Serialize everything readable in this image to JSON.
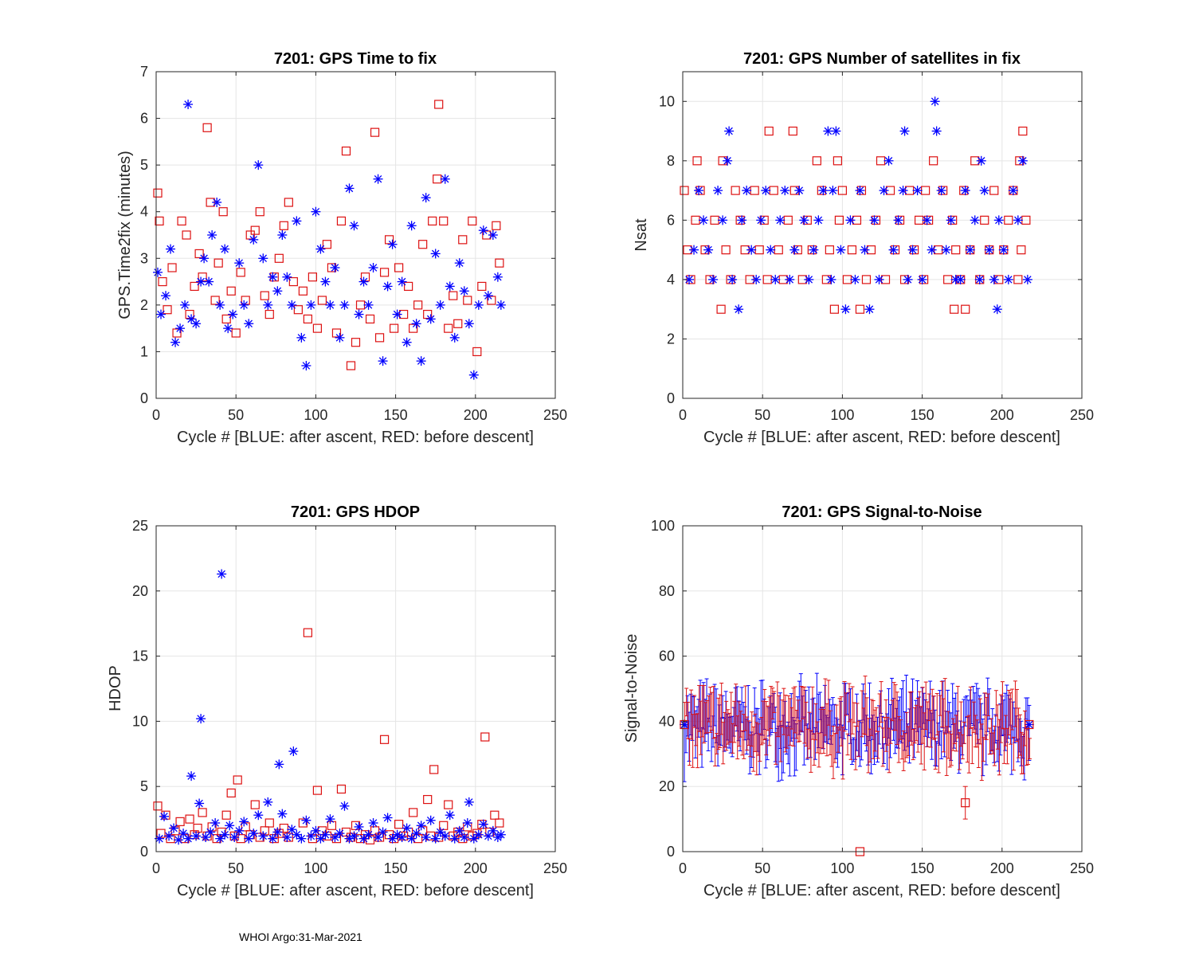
{
  "figure": {
    "footer": "WHOI Argo:31-Mar-2021",
    "colors": {
      "blue": "#0000ff",
      "red": "#dd1111",
      "grid": "#e5e5e5",
      "axis": "#262626"
    }
  },
  "chart_data": [
    {
      "type": "scatter",
      "title": "7201: GPS Time to fix",
      "xlabel": "Cycle #  [BLUE: after ascent, RED: before descent]",
      "ylabel": "GPS.Time2fix (minutes)",
      "xlim": [
        0,
        250
      ],
      "ylim": [
        0,
        7
      ],
      "xticks": [
        0,
        50,
        100,
        150,
        200,
        250
      ],
      "yticks": [
        0,
        1,
        2,
        3,
        4,
        5,
        6,
        7
      ],
      "grid": true,
      "series": [
        {
          "name": "after ascent",
          "marker": "asterisk",
          "color": "blue",
          "x": [
            1,
            3,
            6,
            9,
            12,
            15,
            18,
            20,
            22,
            25,
            28,
            30,
            33,
            35,
            38,
            40,
            43,
            45,
            48,
            52,
            55,
            58,
            61,
            64,
            67,
            70,
            73,
            76,
            79,
            82,
            85,
            88,
            91,
            94,
            97,
            100,
            103,
            106,
            109,
            112,
            115,
            118,
            121,
            124,
            127,
            130,
            133,
            136,
            139,
            142,
            145,
            148,
            151,
            154,
            157,
            160,
            163,
            166,
            169,
            172,
            175,
            178,
            181,
            184,
            187,
            190,
            193,
            196,
            199,
            202,
            205,
            208,
            211,
            214,
            216
          ],
          "y": [
            2.7,
            1.8,
            2.2,
            3.2,
            1.2,
            1.5,
            2.0,
            6.3,
            1.7,
            1.6,
            2.5,
            3.0,
            2.5,
            3.5,
            4.2,
            2.0,
            3.2,
            1.5,
            1.8,
            2.9,
            2.0,
            1.6,
            3.4,
            5.0,
            3.0,
            2.0,
            2.6,
            2.3,
            3.5,
            2.6,
            2.0,
            3.8,
            1.3,
            0.7,
            2.0,
            4.0,
            3.2,
            2.5,
            2.0,
            2.8,
            1.3,
            2.0,
            4.5,
            3.7,
            1.8,
            2.5,
            2.0,
            2.8,
            4.7,
            0.8,
            2.4,
            3.3,
            1.8,
            2.5,
            1.2,
            3.7,
            1.6,
            0.8,
            4.3,
            1.7,
            3.1,
            2.0,
            4.7,
            2.4,
            1.3,
            2.9,
            2.3,
            1.6,
            0.5,
            2.0,
            3.6,
            2.2,
            3.5,
            2.6,
            2.0
          ]
        },
        {
          "name": "before descent",
          "marker": "square",
          "color": "red",
          "x": [
            1,
            2,
            4,
            7,
            10,
            13,
            16,
            19,
            21,
            24,
            27,
            29,
            32,
            34,
            37,
            39,
            42,
            44,
            47,
            50,
            53,
            56,
            59,
            62,
            65,
            68,
            71,
            74,
            77,
            80,
            83,
            86,
            89,
            92,
            95,
            98,
            101,
            104,
            107,
            110,
            113,
            116,
            119,
            122,
            125,
            128,
            131,
            134,
            137,
            140,
            143,
            146,
            149,
            152,
            155,
            158,
            161,
            164,
            167,
            170,
            173,
            176,
            177,
            180,
            183,
            186,
            189,
            192,
            195,
            198,
            201,
            204,
            207,
            210,
            213,
            215
          ],
          "y": [
            4.4,
            3.8,
            2.5,
            1.9,
            2.8,
            1.4,
            3.8,
            3.5,
            1.8,
            2.4,
            3.1,
            2.6,
            5.8,
            4.2,
            2.1,
            2.9,
            4.0,
            1.7,
            2.3,
            1.4,
            2.7,
            2.1,
            3.5,
            3.6,
            4.0,
            2.2,
            1.8,
            2.6,
            3.0,
            3.7,
            4.2,
            2.5,
            1.9,
            2.3,
            1.7,
            2.6,
            1.5,
            2.1,
            3.3,
            2.8,
            1.4,
            3.8,
            5.3,
            0.7,
            1.2,
            2.0,
            2.6,
            1.7,
            5.7,
            1.3,
            2.7,
            3.4,
            1.5,
            2.8,
            1.8,
            2.4,
            1.5,
            2.0,
            3.3,
            1.8,
            3.8,
            4.7,
            6.3,
            3.8,
            1.5,
            2.2,
            1.6,
            3.4,
            2.1,
            3.8,
            1.0,
            2.4,
            3.5,
            2.1,
            3.7,
            2.9
          ]
        }
      ]
    },
    {
      "type": "scatter",
      "title": "7201: GPS Number of satellites in fix",
      "xlabel": "Cycle #  [BLUE: after ascent, RED: before descent]",
      "ylabel": "Nsat",
      "xlim": [
        0,
        250
      ],
      "ylim": [
        0,
        11
      ],
      "xticks": [
        0,
        50,
        100,
        150,
        200,
        250
      ],
      "yticks": [
        0,
        2,
        4,
        6,
        8,
        10
      ],
      "grid": true,
      "series": [
        {
          "name": "after ascent",
          "marker": "asterisk",
          "color": "blue",
          "x": [
            4,
            7,
            10,
            13,
            16,
            19,
            22,
            25,
            28,
            29,
            31,
            35,
            37,
            40,
            43,
            46,
            49,
            52,
            55,
            58,
            61,
            64,
            67,
            70,
            73,
            76,
            79,
            82,
            85,
            88,
            91,
            93,
            94,
            96,
            99,
            102,
            105,
            108,
            111,
            114,
            117,
            120,
            123,
            126,
            129,
            132,
            135,
            138,
            139,
            141,
            144,
            147,
            150,
            153,
            156,
            158,
            159,
            162,
            165,
            168,
            171,
            174,
            177,
            180,
            183,
            186,
            187,
            189,
            192,
            195,
            197,
            198,
            201,
            204,
            207,
            210,
            213,
            216
          ],
          "y": [
            4,
            5,
            7,
            6,
            5,
            4,
            7,
            6,
            8,
            9,
            4,
            3,
            6,
            7,
            5,
            4,
            6,
            7,
            5,
            4,
            6,
            7,
            4,
            5,
            7,
            6,
            4,
            5,
            6,
            7,
            9,
            4,
            7,
            9,
            5,
            3,
            6,
            4,
            7,
            5,
            3,
            6,
            4,
            7,
            8,
            5,
            6,
            7,
            9,
            4,
            5,
            7,
            4,
            6,
            5,
            10,
            9,
            7,
            5,
            6,
            4,
            4,
            7,
            5,
            6,
            4,
            8,
            7,
            5,
            4,
            3,
            6,
            5,
            4,
            7,
            6,
            8,
            4
          ]
        },
        {
          "name": "before descent",
          "marker": "square",
          "color": "red",
          "x": [
            1,
            3,
            5,
            8,
            9,
            11,
            14,
            17,
            20,
            24,
            25,
            27,
            30,
            33,
            36,
            39,
            42,
            45,
            48,
            51,
            53,
            54,
            57,
            60,
            63,
            66,
            69,
            70,
            72,
            75,
            78,
            81,
            84,
            87,
            90,
            92,
            95,
            97,
            98,
            100,
            103,
            106,
            109,
            111,
            112,
            115,
            118,
            121,
            124,
            127,
            130,
            133,
            136,
            139,
            142,
            145,
            148,
            151,
            152,
            154,
            157,
            160,
            163,
            166,
            169,
            170,
            171,
            174,
            176,
            177,
            180,
            183,
            186,
            189,
            192,
            195,
            198,
            201,
            204,
            207,
            210,
            211,
            212,
            213,
            215
          ],
          "y": [
            7,
            5,
            4,
            6,
            8,
            7,
            5,
            4,
            6,
            3,
            8,
            5,
            4,
            7,
            6,
            5,
            4,
            7,
            5,
            6,
            4,
            9,
            7,
            5,
            4,
            6,
            9,
            7,
            5,
            4,
            6,
            5,
            8,
            7,
            4,
            5,
            3,
            8,
            6,
            7,
            4,
            5,
            6,
            3,
            7,
            4,
            5,
            6,
            8,
            4,
            7,
            5,
            6,
            4,
            7,
            5,
            6,
            4,
            7,
            6,
            8,
            5,
            7,
            4,
            6,
            3,
            5,
            4,
            7,
            3,
            5,
            8,
            4,
            6,
            5,
            7,
            4,
            5,
            6,
            7,
            4,
            8,
            5,
            9,
            6
          ]
        }
      ]
    },
    {
      "type": "scatter",
      "title": "7201: GPS HDOP",
      "xlabel": "Cycle #  [BLUE: after ascent, RED: before descent]",
      "ylabel": "HDOP",
      "xlim": [
        0,
        250
      ],
      "ylim": [
        0,
        25
      ],
      "xticks": [
        0,
        50,
        100,
        150,
        200,
        250
      ],
      "yticks": [
        0,
        5,
        10,
        15,
        20,
        25
      ],
      "grid": true,
      "series": [
        {
          "name": "after ascent",
          "marker": "asterisk",
          "color": "blue",
          "x": [
            2,
            5,
            8,
            11,
            14,
            17,
            20,
            22,
            25,
            27,
            28,
            31,
            34,
            37,
            40,
            41,
            43,
            46,
            49,
            52,
            55,
            58,
            61,
            64,
            67,
            70,
            73,
            76,
            77,
            79,
            82,
            85,
            86,
            88,
            91,
            94,
            97,
            100,
            103,
            106,
            109,
            112,
            115,
            118,
            121,
            124,
            127,
            130,
            133,
            136,
            139,
            142,
            145,
            148,
            151,
            154,
            157,
            160,
            163,
            166,
            169,
            172,
            175,
            178,
            181,
            184,
            187,
            190,
            193,
            195,
            196,
            199,
            202,
            205,
            208,
            211,
            214,
            216
          ],
          "y": [
            1.0,
            2.7,
            1.2,
            1.8,
            0.9,
            1.4,
            1.0,
            5.8,
            1.2,
            3.7,
            10.2,
            1.1,
            1.5,
            2.2,
            1.0,
            21.3,
            1.3,
            2.0,
            1.1,
            1.6,
            2.3,
            1.0,
            1.4,
            2.8,
            1.2,
            3.8,
            1.0,
            1.5,
            6.7,
            2.9,
            1.1,
            1.7,
            7.7,
            1.3,
            1.0,
            2.4,
            1.2,
            1.6,
            1.0,
            1.3,
            2.5,
            1.1,
            1.4,
            3.5,
            1.0,
            1.2,
            1.9,
            1.0,
            1.3,
            2.2,
            1.1,
            1.5,
            2.6,
            1.0,
            1.3,
            1.1,
            1.8,
            1.0,
            1.4,
            2.0,
            1.1,
            2.4,
            1.0,
            1.5,
            1.2,
            2.8,
            1.0,
            1.6,
            1.1,
            2.2,
            3.8,
            1.0,
            1.3,
            2.1,
            1.2,
            1.6,
            1.1,
            1.3
          ]
        },
        {
          "name": "before descent",
          "marker": "square",
          "color": "red",
          "x": [
            1,
            3,
            6,
            9,
            12,
            15,
            18,
            21,
            24,
            26,
            29,
            32,
            35,
            38,
            41,
            44,
            47,
            49,
            51,
            53,
            56,
            59,
            62,
            65,
            68,
            71,
            74,
            77,
            80,
            83,
            92,
            95,
            98,
            101,
            104,
            107,
            110,
            113,
            116,
            119,
            122,
            125,
            128,
            131,
            134,
            137,
            140,
            143,
            146,
            149,
            152,
            155,
            158,
            161,
            164,
            167,
            170,
            172,
            174,
            177,
            180,
            183,
            186,
            189,
            192,
            195,
            198,
            201,
            204,
            206,
            209,
            212,
            215
          ],
          "y": [
            3.5,
            1.4,
            2.8,
            1.0,
            1.6,
            2.3,
            1.0,
            2.5,
            1.3,
            1.8,
            3.0,
            1.2,
            1.9,
            1.0,
            1.5,
            2.8,
            4.5,
            1.2,
            5.5,
            1.0,
            1.9,
            1.3,
            3.6,
            1.1,
            1.6,
            2.2,
            1.0,
            1.4,
            1.8,
            1.1,
            2.2,
            16.8,
            1.0,
            4.7,
            1.6,
            1.2,
            2.0,
            1.0,
            4.8,
            1.5,
            1.1,
            2.0,
            1.0,
            1.3,
            0.9,
            1.6,
            1.1,
            8.6,
            1.3,
            1.0,
            2.1,
            1.2,
            1.5,
            3.0,
            1.0,
            1.6,
            4.0,
            1.2,
            6.3,
            1.1,
            2.0,
            3.6,
            1.2,
            1.5,
            1.0,
            1.9,
            1.2,
            1.4,
            2.1,
            8.8,
            1.5,
            2.8,
            2.2
          ]
        }
      ]
    },
    {
      "type": "errorbar",
      "title": "7201: GPS Signal-to-Noise",
      "xlabel": "Cycle #  [BLUE: after ascent, RED: before descent]",
      "ylabel": "Signal-to-Noise",
      "xlim": [
        0,
        250
      ],
      "ylim": [
        0,
        100
      ],
      "xticks": [
        0,
        50,
        100,
        150,
        200,
        250
      ],
      "yticks": [
        0,
        20,
        40,
        60,
        80,
        100
      ],
      "grid": true,
      "mean_range": [
        30,
        46
      ],
      "halfwidth_range": [
        3,
        9
      ],
      "cycles": [
        1,
        217
      ],
      "series": [
        {
          "name": "after ascent",
          "marker": "asterisk",
          "color": "blue",
          "typical_mean": 39,
          "outliers": []
        },
        {
          "name": "before descent",
          "marker": "square",
          "color": "red",
          "typical_mean": 39,
          "outliers": [
            {
              "x": 111,
              "y": 0,
              "err": 0
            },
            {
              "x": 177,
              "y": 15,
              "err": 5
            }
          ]
        }
      ]
    }
  ]
}
